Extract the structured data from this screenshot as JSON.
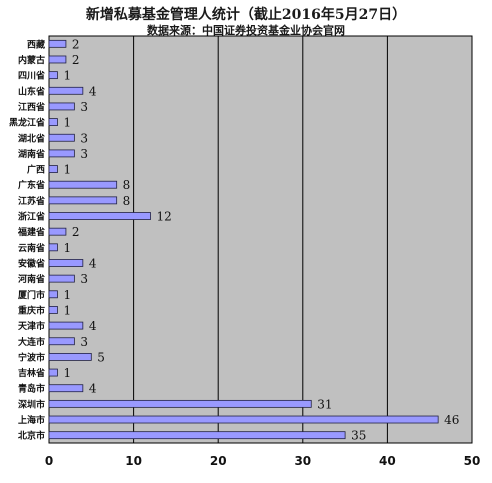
{
  "title": "新增私募基金管理人统计（截止2016年5月27日）",
  "subtitle": "数据来源：中国证券投资基金业协会官网",
  "chart_data": {
    "type": "bar",
    "orientation": "horizontal",
    "title": "新增私募基金管理人统计（截止2016年5月27日）",
    "subtitle": "数据来源：中国证券投资基金业协会官网",
    "categories": [
      "西藏",
      "内蒙古",
      "四川省",
      "山东省",
      "江西省",
      "黑龙江省",
      "湖北省",
      "湖南省",
      "广西",
      "广东省",
      "江苏省",
      "浙江省",
      "福建省",
      "云南省",
      "安徽省",
      "河南省",
      "厦门市",
      "重庆市",
      "天津市",
      "大连市",
      "宁波市",
      "吉林省",
      "青岛市",
      "深圳市",
      "上海市",
      "北京市"
    ],
    "values": [
      2,
      2,
      1,
      4,
      3,
      1,
      3,
      3,
      1,
      8,
      8,
      12,
      2,
      1,
      4,
      3,
      1,
      1,
      4,
      3,
      5,
      1,
      4,
      31,
      46,
      35
    ],
    "xlim": [
      0,
      50
    ],
    "xticks": [
      0,
      10,
      20,
      30,
      40,
      50
    ],
    "grid": true,
    "colors": {
      "bar_fill": "#9999ff",
      "bar_stroke": "#222244",
      "plot_bg": "#c0c0c0",
      "grid": "#000000"
    }
  }
}
